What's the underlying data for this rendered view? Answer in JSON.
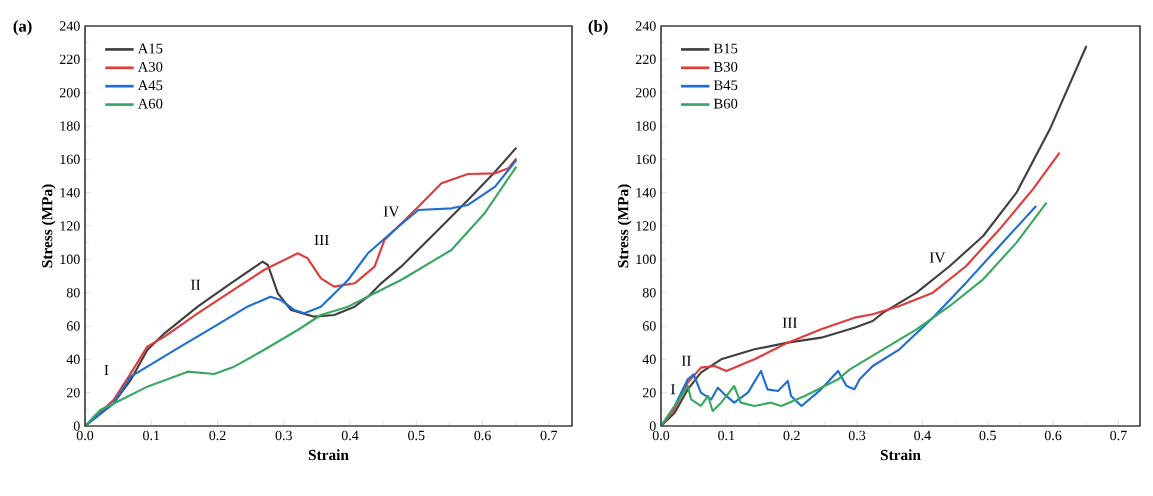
{
  "chart_data": [
    {
      "type": "line",
      "title": "(a)",
      "xlabel": "Strain",
      "ylabel": "Stress (MPa)",
      "xlim": [
        0,
        0.735
      ],
      "ylim": [
        0,
        240
      ],
      "xticks": [
        {
          "value": 0,
          "label": "0.0"
        },
        0.1,
        0.2,
        0.3,
        0.4,
        0.5,
        0.6,
        0.7
      ],
      "yticks": [
        0,
        20,
        40,
        60,
        80,
        100,
        120,
        140,
        160,
        180,
        200,
        220,
        240
      ],
      "legend": "top left",
      "series": [
        {
          "name": "A15",
          "color": "#404040",
          "x": [
            0,
            0.043,
            0.069,
            0.094,
            0.12,
            0.17,
            0.22,
            0.268,
            0.276,
            0.291,
            0.311,
            0.346,
            0.376,
            0.407,
            0.427,
            0.447,
            0.477,
            0.528,
            0.578,
            0.619,
            0.651
          ],
          "values": [
            0,
            13.6,
            27.6,
            45.6,
            55.6,
            71.6,
            85.6,
            98.6,
            96.6,
            79.6,
            69.6,
            65.6,
            66.6,
            71.6,
            77.6,
            85.6,
            95.6,
            115.6,
            135.6,
            152.6,
            167
          ]
        },
        {
          "name": "A30",
          "color": "#e03c3c",
          "x": [
            0,
            0.043,
            0.069,
            0.094,
            0.12,
            0.17,
            0.22,
            0.27,
            0.321,
            0.336,
            0.356,
            0.376,
            0.407,
            0.437,
            0.452,
            0.503,
            0.538,
            0.578,
            0.619,
            0.639,
            0.651
          ],
          "values": [
            0,
            15.6,
            31.6,
            47.6,
            53.6,
            67.6,
            80.6,
            93.6,
            103.6,
            100.6,
            88.6,
            83.6,
            85.6,
            95.6,
            111.6,
            131.6,
            145.6,
            151.2,
            151.6,
            154.6,
            160.6
          ]
        },
        {
          "name": "A45",
          "color": "#1f6fd0",
          "x": [
            0,
            0.043,
            0.069,
            0.094,
            0.144,
            0.195,
            0.245,
            0.28,
            0.295,
            0.316,
            0.331,
            0.356,
            0.397,
            0.427,
            0.467,
            0.503,
            0.553,
            0.578,
            0.619,
            0.651
          ],
          "values": [
            0,
            13.6,
            29.6,
            35.6,
            47.6,
            59.6,
            71.6,
            77.6,
            75.6,
            69.6,
            67.6,
            71.6,
            87.6,
            103.6,
            117.6,
            129.6,
            130.6,
            132.6,
            143.6,
            159.6
          ]
        },
        {
          "name": "A60",
          "color": "#3aa860",
          "x": [
            0,
            0.023,
            0.054,
            0.094,
            0.155,
            0.195,
            0.225,
            0.27,
            0.321,
            0.356,
            0.397,
            0.437,
            0.477,
            0.553,
            0.603,
            0.651
          ],
          "values": [
            0,
            9.6,
            15.6,
            23.6,
            32.6,
            31.2,
            35.6,
            45.6,
            57.6,
            66.6,
            71.6,
            79.6,
            87.6,
            105.6,
            127.6,
            155.6
          ]
        }
      ],
      "annotations": [
        "I",
        "II",
        "III",
        "IV"
      ]
    },
    {
      "type": "line",
      "title": "(b)",
      "xlabel": "Strain",
      "ylabel": "Stress (MPa)",
      "xlim": [
        0,
        0.733
      ],
      "ylim": [
        0,
        240
      ],
      "xticks": [
        {
          "value": 0,
          "label": "0.0"
        },
        0.1,
        0.2,
        0.3,
        0.4,
        0.5,
        0.6,
        0.7
      ],
      "yticks": [
        0,
        20,
        40,
        60,
        80,
        100,
        120,
        140,
        160,
        180,
        200,
        220,
        240
      ],
      "legend": "top left",
      "series": [
        {
          "name": "B15",
          "color": "#404040",
          "x": [
            0,
            0.021,
            0.041,
            0.061,
            0.092,
            0.143,
            0.194,
            0.245,
            0.296,
            0.324,
            0.34,
            0.391,
            0.442,
            0.493,
            0.544,
            0.595,
            0.651
          ],
          "values": [
            0,
            8,
            22,
            32,
            40,
            46,
            50,
            53,
            59,
            63,
            68,
            80,
            96,
            114,
            140,
            178,
            228
          ]
        },
        {
          "name": "B30",
          "color": "#e03c3c",
          "x": [
            0,
            0.021,
            0.041,
            0.061,
            0.082,
            0.1,
            0.143,
            0.194,
            0.245,
            0.296,
            0.324,
            0.365,
            0.416,
            0.467,
            0.518,
            0.569,
            0.61
          ],
          "values": [
            0,
            10,
            26,
            35,
            36,
            33,
            40,
            50,
            58,
            65,
            67,
            72,
            80,
            96,
            118,
            142,
            164
          ]
        },
        {
          "name": "B45",
          "color": "#1f6fd0",
          "x": [
            0,
            0.021,
            0.041,
            0.05,
            0.061,
            0.077,
            0.087,
            0.097,
            0.112,
            0.133,
            0.153,
            0.163,
            0.179,
            0.194,
            0.199,
            0.215,
            0.245,
            0.271,
            0.284,
            0.296,
            0.304,
            0.324,
            0.365,
            0.416,
            0.467,
            0.518,
            0.574
          ],
          "values": [
            0,
            12,
            28,
            31,
            20,
            16,
            23,
            19,
            14,
            20,
            33,
            22,
            21,
            27,
            18,
            12,
            22,
            33,
            24,
            22,
            28,
            36,
            46,
            65,
            86,
            108,
            132
          ]
        },
        {
          "name": "B60",
          "color": "#3aa860",
          "x": [
            0,
            0.021,
            0.041,
            0.046,
            0.061,
            0.072,
            0.079,
            0.092,
            0.112,
            0.122,
            0.143,
            0.168,
            0.184,
            0.22,
            0.271,
            0.289,
            0.34,
            0.391,
            0.442,
            0.493,
            0.544,
            0.59
          ],
          "values": [
            0,
            12,
            24,
            16,
            12,
            18,
            9,
            14,
            24,
            14,
            12,
            14,
            12,
            18,
            28,
            34,
            46,
            58,
            72,
            88,
            110,
            134
          ]
        }
      ],
      "annotations": [
        "I",
        "II",
        "III",
        "IV"
      ]
    }
  ]
}
